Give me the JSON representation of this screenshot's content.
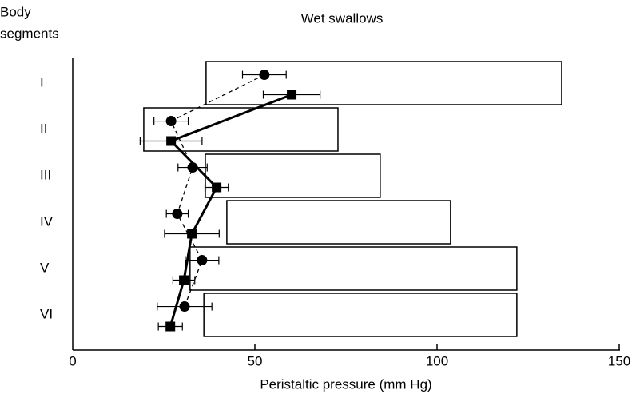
{
  "chart_data": {
    "type": "range-dot",
    "title": "Wet swallows",
    "ylabel": [
      "Body",
      "segments"
    ],
    "xlabel": "Peristaltic pressure (mm Hg)",
    "categories": [
      "I",
      "II",
      "III",
      "IV",
      "V",
      "VI"
    ],
    "ranges": [
      [
        36.6,
        134.2
      ],
      [
        19.5,
        72.8
      ],
      [
        36.4,
        84.4
      ],
      [
        42.3,
        103.7
      ],
      [
        32.2,
        121.9
      ],
      [
        36,
        121.9
      ]
    ],
    "series": [
      {
        "marker": "circle",
        "dash": true,
        "color": "#000000",
        "values": [
          52.6,
          27,
          32.9,
          28.7,
          35.5,
          30.7
        ],
        "errors": [
          6,
          4.7,
          4,
          3,
          4.6,
          7.5
        ]
      },
      {
        "marker": "square",
        "dash": false,
        "color": "#000000",
        "values": [
          60.1,
          27,
          39.5,
          32.7,
          30.5,
          26.8
        ],
        "errors": [
          7.8,
          8.5,
          3.2,
          7.5,
          3,
          3.3
        ]
      }
    ],
    "xlim": [
      0,
      150
    ],
    "xticks": [
      0,
      50,
      100,
      150
    ]
  }
}
